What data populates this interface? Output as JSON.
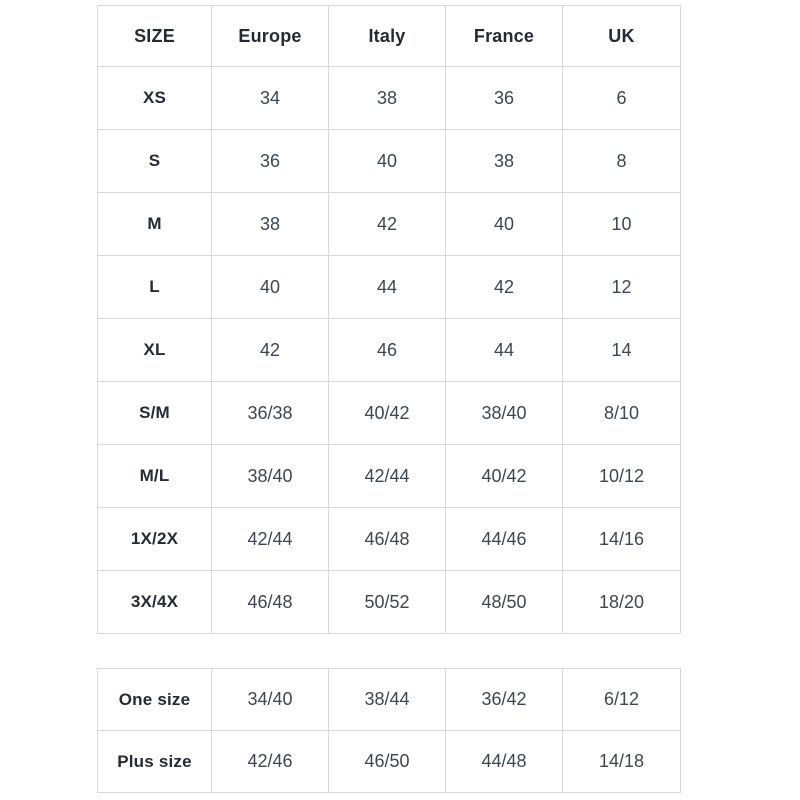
{
  "colors": {
    "background": "#ffffff",
    "grid_border": "#d8d8d8",
    "header_text": "#262a33",
    "cell_text": "#3e4651"
  },
  "chart_data": [
    {
      "type": "table",
      "title": "",
      "columns": [
        "SIZE",
        "Europe",
        "Italy",
        "France",
        "UK"
      ],
      "rows": [
        [
          "XS",
          "34",
          "38",
          "36",
          "6"
        ],
        [
          "S",
          "36",
          "40",
          "38",
          "8"
        ],
        [
          "M",
          "38",
          "42",
          "40",
          "10"
        ],
        [
          "L",
          "40",
          "44",
          "42",
          "12"
        ],
        [
          "XL",
          "42",
          "46",
          "44",
          "14"
        ],
        [
          "S/M",
          "36/38",
          "40/42",
          "38/40",
          "8/10"
        ],
        [
          "M/L",
          "38/40",
          "42/44",
          "40/42",
          "10/12"
        ],
        [
          "1X/2X",
          "42/44",
          "46/48",
          "44/46",
          "14/16"
        ],
        [
          "3X/4X",
          "46/48",
          "50/52",
          "48/50",
          "18/20"
        ]
      ]
    },
    {
      "type": "table",
      "title": "",
      "columns": [],
      "rows": [
        [
          "One size",
          "34/40",
          "38/44",
          "36/42",
          "6/12"
        ],
        [
          "Plus size",
          "42/46",
          "46/50",
          "44/48",
          "14/18"
        ]
      ]
    }
  ]
}
